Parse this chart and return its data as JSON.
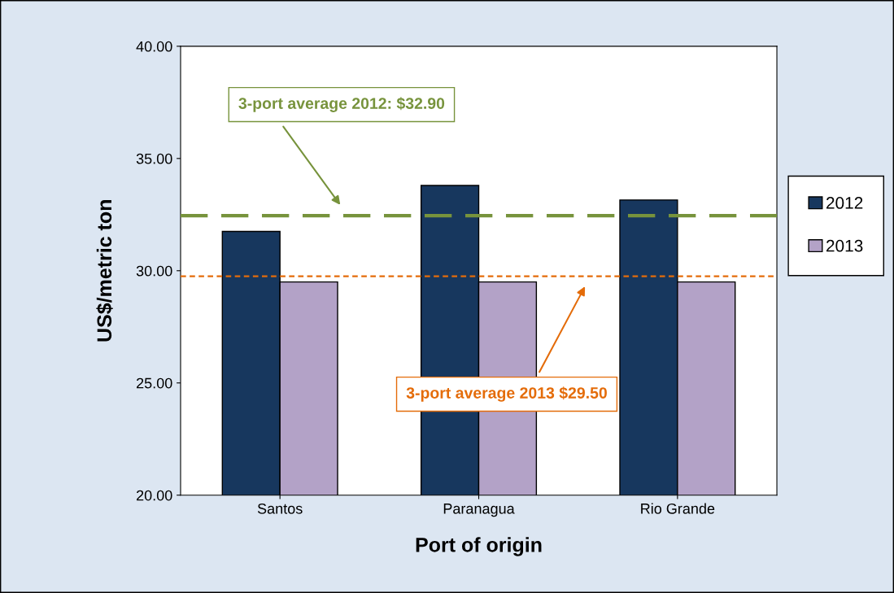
{
  "chart_data": {
    "type": "bar",
    "xlabel": "Port of origin",
    "ylabel": "US$/metric ton",
    "categories": [
      "Santos",
      "Paranagua",
      "Rio Grande"
    ],
    "series": [
      {
        "name": "2012",
        "color": "#17375e",
        "values": [
          31.75,
          33.8,
          33.15
        ]
      },
      {
        "name": "2013",
        "color": "#b3a2c7",
        "values": [
          29.5,
          29.5,
          29.5
        ]
      }
    ],
    "ylim": [
      20,
      40
    ],
    "yticks": [
      {
        "value": 20,
        "label": "20.00"
      },
      {
        "value": 25,
        "label": "25.00"
      },
      {
        "value": 30,
        "label": "30.00"
      },
      {
        "value": 35,
        "label": "35.00"
      },
      {
        "value": 40,
        "label": "40.00"
      }
    ],
    "ref_lines": [
      {
        "axis": "y",
        "value": 32.45,
        "color": "#77933c",
        "line_style": "dashed"
      },
      {
        "axis": "y",
        "value": 29.75,
        "color": "#e46c0a",
        "line_style": "dotted"
      }
    ],
    "annotations": [
      "3-port average 2012: $32.90",
      "3-port average 2013 $29.50"
    ],
    "grid": false,
    "legend": "right"
  }
}
